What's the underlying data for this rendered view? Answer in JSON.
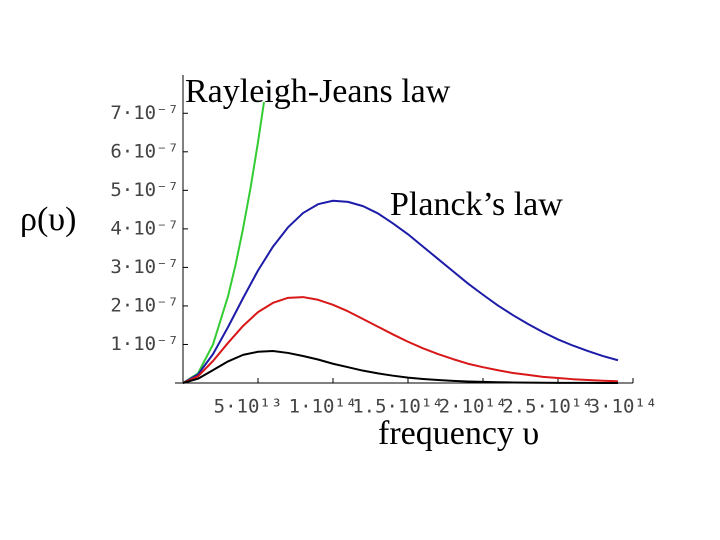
{
  "chart_data": {
    "type": "line",
    "annotations": [
      "Rayleigh-Jeans law",
      "Planck’s  law"
    ],
    "ylabel": "ρ(υ)",
    "xlabel": "frequency  υ",
    "x": [
      0,
      10000000000000.0,
      20000000000000.0,
      30000000000000.0,
      40000000000000.0,
      50000000000000.0,
      60000000000000.0,
      70000000000000.0,
      80000000000000.0,
      90000000000000.0,
      100000000000000.0,
      110000000000000.0,
      120000000000000.0,
      130000000000000.0,
      140000000000000.0,
      150000000000000.0,
      160000000000000.0,
      170000000000000.0,
      180000000000000.0,
      190000000000000.0,
      200000000000000.0,
      210000000000000.0,
      220000000000000.0,
      230000000000000.0,
      240000000000000.0,
      250000000000000.0,
      260000000000000.0,
      270000000000000.0,
      280000000000000.0,
      290000000000000.0
    ],
    "series": [
      {
        "color": "#33cc33",
        "x": [
          0,
          10000000000000.0,
          20000000000000.0,
          30000000000000.0,
          35000000000000.0,
          40000000000000.0,
          45000000000000.0,
          50000000000000.0,
          54000000000000.0
        ],
        "values": [
          0,
          2.5e-08,
          1e-07,
          2.25e-07,
          3.06e-07,
          4e-07,
          5.06e-07,
          6.25e-07,
          7.29e-07
        ]
      },
      {
        "color": "#1c1ca8",
        "values": [
          0,
          2.2e-08,
          7.5e-08,
          1.45e-07,
          2.2e-07,
          2.92e-07,
          3.54e-07,
          4.04e-07,
          4.41e-07,
          4.64e-07,
          4.73e-07,
          4.7e-07,
          4.59e-07,
          4.4e-07,
          4.14e-07,
          3.86e-07,
          3.54e-07,
          3.22e-07,
          2.9e-07,
          2.58e-07,
          2.29e-07,
          2.01e-07,
          1.76e-07,
          1.53e-07,
          1.32e-07,
          1.13e-07,
          9.7e-08,
          8.3e-08,
          7e-08,
          5.9e-08
        ]
      },
      {
        "color": "#d81818",
        "values": [
          0,
          1.74e-08,
          5.71e-08,
          1.04e-07,
          1.48e-07,
          1.84e-07,
          2.08e-07,
          2.21e-07,
          2.23e-07,
          2.16e-07,
          2.03e-07,
          1.86e-07,
          1.66e-07,
          1.46e-07,
          1.26e-07,
          1.07e-07,
          9e-08,
          7.5e-08,
          6.2e-08,
          5e-08,
          4.1e-08,
          3.3e-08,
          2.6e-08,
          2.1e-08,
          1.6e-08,
          1.3e-08,
          9.9e-09,
          7.7e-09,
          6e-09,
          4.6e-09
        ]
      },
      {
        "color": "#000000",
        "values": [
          0,
          1.11e-08,
          3.35e-08,
          5.6e-08,
          7.3e-08,
          8.1e-08,
          8.3e-08,
          7.8e-08,
          7e-08,
          6.1e-08,
          5e-08,
          4.1e-08,
          3.2e-08,
          2.5e-08,
          1.9e-08,
          1.4e-08,
          1.05e-08,
          7.7e-09,
          5.6e-09,
          4e-09,
          2.8e-09,
          2e-09,
          1.4e-09,
          9.8e-10,
          6.8e-10,
          4.7e-10,
          3.2e-10,
          2.2e-10,
          1.5e-10,
          1e-10
        ]
      }
    ],
    "xlim": [
      0,
      300000000000000.0
    ],
    "ylim": [
      0,
      7.5e-07
    ],
    "xticks": [
      {
        "value": 50000000000000.0,
        "label": "5·10¹³"
      },
      {
        "value": 100000000000000.0,
        "label": "1·10¹⁴"
      },
      {
        "value": 150000000000000.0,
        "label": "1.5·10¹⁴"
      },
      {
        "value": 200000000000000.0,
        "label": "2·10¹⁴"
      },
      {
        "value": 250000000000000.0,
        "label": "2.5·10¹⁴"
      },
      {
        "value": 300000000000000.0,
        "label": "3·10¹⁴"
      }
    ],
    "yticks": [
      {
        "value": 1e-07,
        "label": "1·10⁻⁷"
      },
      {
        "value": 2e-07,
        "label": "2·10⁻⁷"
      },
      {
        "value": 3e-07,
        "label": "3·10⁻⁷"
      },
      {
        "value": 4e-07,
        "label": "4·10⁻⁷"
      },
      {
        "value": 5e-07,
        "label": "5·10⁻⁷"
      },
      {
        "value": 6e-07,
        "label": "6·10⁻⁷"
      },
      {
        "value": 7e-07,
        "label": "7·10⁻⁷"
      }
    ]
  }
}
